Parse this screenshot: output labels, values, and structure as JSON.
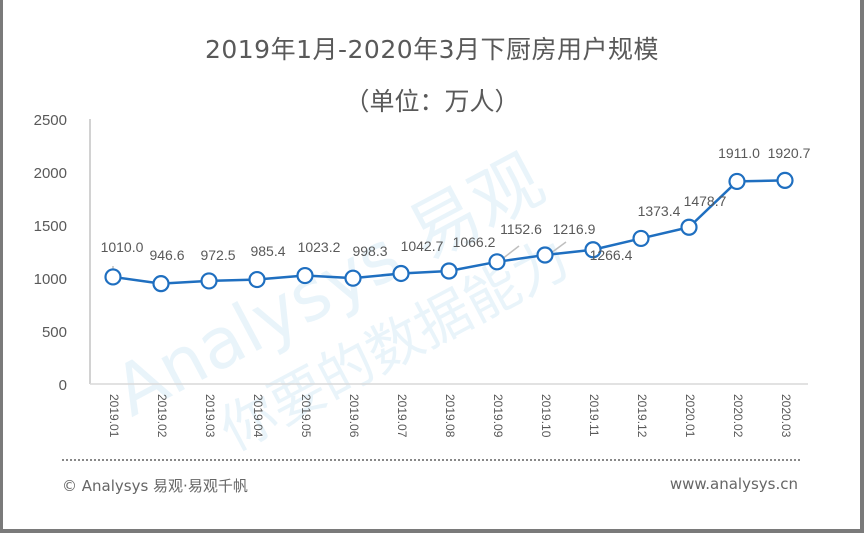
{
  "title": "2019年1月-2020年3月下厨房用户规模",
  "subtitle": "（单位：万人）",
  "watermark": {
    "brand": "Analysys 易观",
    "slogan": "你要的数据能力"
  },
  "footer": {
    "left": "© Analysys 易观·易观千帆",
    "right": "www.analysys.cn"
  },
  "colors": {
    "line": "#1f6fc0",
    "marker_fill": "#ffffff",
    "axis": "#bfbfbf",
    "text": "#595959"
  },
  "chart_data": {
    "type": "line",
    "title": "2019年1月-2020年3月下厨房用户规模",
    "subtitle": "（单位：万人）",
    "xlabel": "",
    "ylabel": "万人",
    "ylim": [
      0,
      2500
    ],
    "yticks": [
      0,
      500,
      1000,
      1500,
      2000,
      2500
    ],
    "grid": false,
    "legend": "none",
    "categories": [
      "2019.01",
      "2019.02",
      "2019.03",
      "2019.04",
      "2019.05",
      "2019.06",
      "2019.07",
      "2019.08",
      "2019.09",
      "2019.10",
      "2019.11",
      "2019.12",
      "2020.01",
      "2020.02",
      "2020.03"
    ],
    "series": [
      {
        "name": "下厨房用户规模",
        "values": [
          1010.0,
          946.6,
          972.5,
          985.4,
          1023.2,
          998.3,
          1042.7,
          1066.2,
          1152.6,
          1216.9,
          1266.4,
          1373.4,
          1478.7,
          1911.0,
          1920.7
        ]
      }
    ],
    "labels": [
      "1010.0",
      "946.6",
      "972.5",
      "985.4",
      "1023.2",
      "998.3",
      "1042.7",
      "1066.2",
      "1152.6",
      "1216.9",
      "1266.4",
      "1373.4",
      "1478.7",
      "1911.0",
      "1920.7"
    ]
  }
}
